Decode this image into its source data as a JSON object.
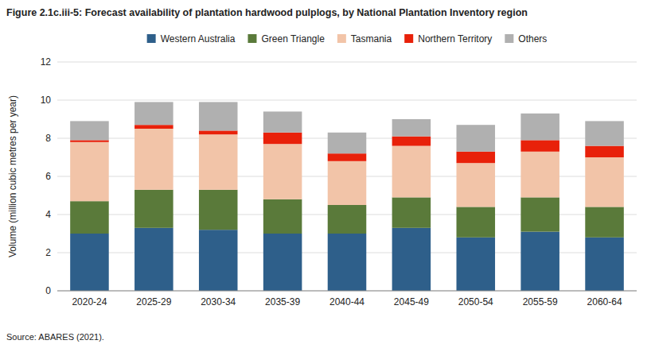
{
  "chart_data": {
    "type": "bar",
    "stacked": true,
    "title": "Figure 2.1c.iii-5: Forecast availability of plantation hardwood pulplogs, by National Plantation Inventory region",
    "ylabel": "Volume (million cubic metres per year)",
    "annotations": [
      "Source: ABARES (2021)."
    ],
    "categories": [
      "2020-24",
      "2025-29",
      "2030-34",
      "2035-39",
      "2040-44",
      "2045-49",
      "2050-54",
      "2055-59",
      "2060-64"
    ],
    "series": [
      {
        "name": "Western Australia",
        "color": "#2E5F8A",
        "values": [
          3.0,
          3.3,
          3.2,
          3.0,
          3.0,
          3.3,
          2.8,
          3.1,
          2.8
        ]
      },
      {
        "name": "Green Triangle",
        "color": "#5A7A3A",
        "values": [
          1.7,
          2.0,
          2.1,
          1.8,
          1.5,
          1.6,
          1.6,
          1.8,
          1.6
        ]
      },
      {
        "name": "Tasmania",
        "color": "#F2C4A8",
        "values": [
          3.1,
          3.2,
          2.9,
          2.9,
          2.3,
          2.7,
          2.3,
          2.4,
          2.6
        ]
      },
      {
        "name": "Northern Territory",
        "color": "#E8210A",
        "values": [
          0.1,
          0.2,
          0.2,
          0.6,
          0.4,
          0.5,
          0.6,
          0.6,
          0.6
        ]
      },
      {
        "name": "Others",
        "color": "#B0B0B0",
        "values": [
          1.0,
          1.2,
          1.5,
          1.1,
          1.1,
          0.9,
          1.4,
          1.4,
          1.3
        ]
      }
    ],
    "ylim": [
      0,
      12
    ],
    "yticks": [
      0,
      2,
      4,
      6,
      8,
      10,
      12
    ],
    "grid": true,
    "legend": "top"
  }
}
